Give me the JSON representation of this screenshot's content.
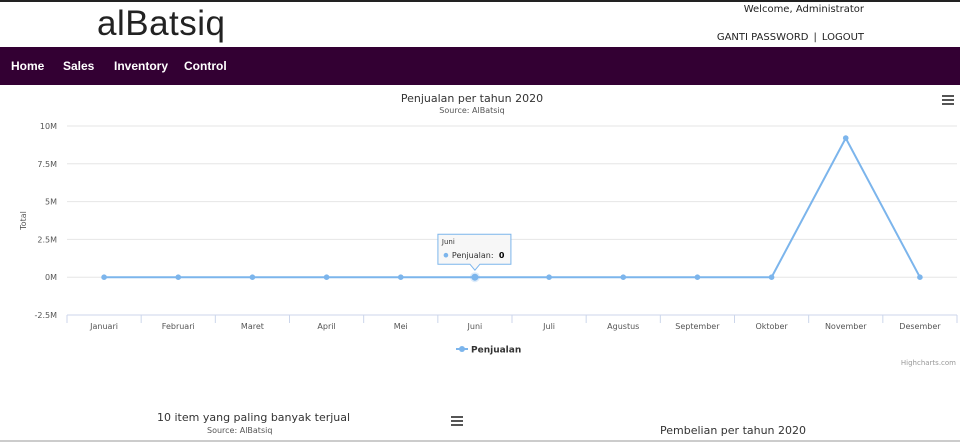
{
  "app": {
    "brand": "alBatsiq"
  },
  "header": {
    "welcome": "Welcome, Administrator",
    "change_password": "GANTI PASSWORD",
    "separator": "|",
    "logout": "LOGOUT"
  },
  "nav": {
    "home": "Home",
    "sales": "Sales",
    "inventory": "Inventory",
    "control": "Control"
  },
  "colors": {
    "nav_bg": "#330033",
    "series": "#7cb5ec"
  },
  "chart_data": {
    "type": "line",
    "title": "Penjualan per tahun 2020",
    "subtitle": "Source: AlBatsiq",
    "ylabel": "Total",
    "xlabel": "",
    "categories": [
      "Januari",
      "Februari",
      "Maret",
      "April",
      "Mei",
      "Juni",
      "Juli",
      "Agustus",
      "September",
      "Oktober",
      "November",
      "Desember"
    ],
    "series": [
      {
        "name": "Penjualan",
        "values": [
          0,
          0,
          0,
          0,
          0,
          0,
          0,
          0,
          0,
          0,
          9200000,
          0
        ]
      }
    ],
    "yticks": [
      "-2.5M",
      "0M",
      "2.5M",
      "5M",
      "7.5M",
      "10M"
    ],
    "ylim": [
      -2500000,
      10000000
    ],
    "grid": true,
    "legend": "bottom-center",
    "tooltip": {
      "category": "Juni",
      "series": "Penjualan",
      "label": "Penjualan:",
      "value": "0"
    },
    "credits": "Highcharts.com",
    "menu_icon": "hamburger-menu-icon"
  },
  "lower": {
    "left_title": "10 item yang paling banyak terjual",
    "left_subtitle": "Source: AlBatsiq",
    "right_title": "Pembelian per tahun 2020"
  }
}
